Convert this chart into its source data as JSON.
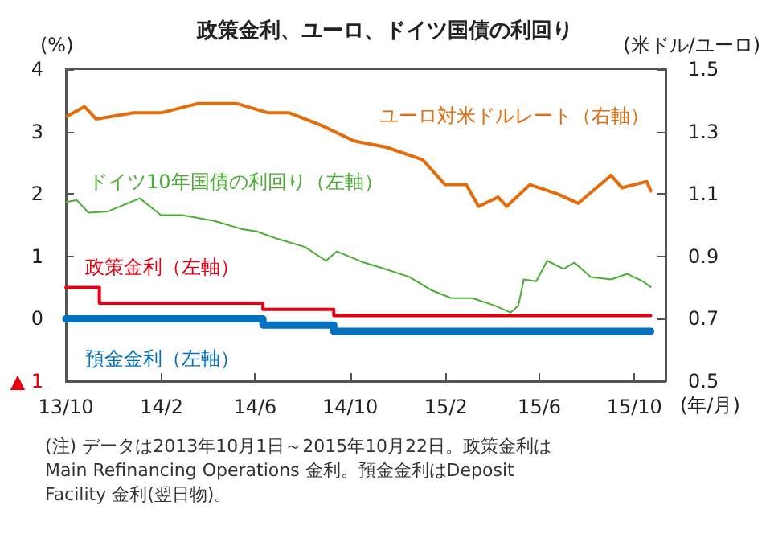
{
  "chart_data": {
    "type": "line",
    "title": "政策金利、ユーロ、ドイツ国債の利回り",
    "ylabel": "(%)",
    "y2label": "(米ドル/ユーロ)",
    "xlabel": "(年/月)",
    "annotations": [
      "(注) データは2013年10月1日～2015年10月22日。政策金利はMain Refinancing Operations 金利。預金金利はDeposit Facility 金利(翌日物)。"
    ],
    "xlim": [
      "2013-10-01",
      "2015-11-10"
    ],
    "xticks": [
      {
        "value": "2013-10-01",
        "label": "13/10"
      },
      {
        "value": "2014-02-01",
        "label": "14/2"
      },
      {
        "value": "2014-06-01",
        "label": "14/6"
      },
      {
        "value": "2014-10-01",
        "label": "14/10"
      },
      {
        "value": "2015-02-01",
        "label": "15/2"
      },
      {
        "value": "2015-06-01",
        "label": "15/6"
      },
      {
        "value": "2015-10-01",
        "label": "15/10"
      }
    ],
    "ylim": [
      -1,
      4
    ],
    "yticks": [
      {
        "value": -1,
        "label": "▲ 1"
      },
      0,
      1,
      2,
      3,
      4
    ],
    "y2lim": [
      0.5,
      1.5
    ],
    "y2ticks": [
      0.5,
      0.7,
      0.9,
      1.1,
      1.3,
      1.5
    ],
    "grid": false,
    "legend": false,
    "marker": "none",
    "series": [
      {
        "name": "ユーロ対米ドルレート（右軸）",
        "color": "#e46c0a",
        "axis": "y2",
        "x": [
          "2013-10-03",
          "2013-10-25",
          "2013-11-09",
          "2013-12-27",
          "2014-01-31",
          "2014-03-20",
          "2014-05-08",
          "2014-06-18",
          "2014-07-15",
          "2014-08-25",
          "2014-10-06",
          "2014-11-16",
          "2015-01-02",
          "2015-01-31",
          "2015-02-27",
          "2015-03-15",
          "2015-04-09",
          "2015-04-20",
          "2015-05-20",
          "2015-06-24",
          "2015-07-21",
          "2015-09-01",
          "2015-09-15",
          "2015-10-17",
          "2015-10-22"
        ],
        "values": [
          1.35,
          1.38,
          1.34,
          1.36,
          1.36,
          1.39,
          1.39,
          1.36,
          1.36,
          1.32,
          1.27,
          1.25,
          1.21,
          1.13,
          1.13,
          1.06,
          1.09,
          1.06,
          1.13,
          1.1,
          1.07,
          1.16,
          1.12,
          1.14,
          1.11
        ]
      },
      {
        "name": "ドイツ10年国債の利回り（左軸）",
        "color": "#4aad34",
        "x": [
          "2013-10-01",
          "2013-10-15",
          "2013-10-30",
          "2013-11-24",
          "2014-01-04",
          "2014-01-31",
          "2014-02-27",
          "2014-04-09",
          "2014-05-14",
          "2014-06-03",
          "2014-06-30",
          "2014-08-04",
          "2014-08-31",
          "2014-09-14",
          "2014-10-19",
          "2014-11-14",
          "2014-12-16",
          "2015-01-13",
          "2015-02-08",
          "2015-03-07",
          "2015-04-05",
          "2015-04-25",
          "2015-05-05",
          "2015-05-12",
          "2015-05-28",
          "2015-06-11",
          "2015-07-02",
          "2015-07-16",
          "2015-08-06",
          "2015-09-01",
          "2015-09-22",
          "2015-10-12",
          "2015-10-22"
        ],
        "values": [
          1.87,
          1.9,
          1.7,
          1.72,
          1.93,
          1.66,
          1.66,
          1.57,
          1.44,
          1.4,
          1.28,
          1.15,
          0.93,
          1.08,
          0.9,
          0.8,
          0.67,
          0.46,
          0.33,
          0.33,
          0.21,
          0.1,
          0.21,
          0.63,
          0.6,
          0.93,
          0.8,
          0.9,
          0.67,
          0.63,
          0.72,
          0.6,
          0.51
        ]
      },
      {
        "name": "政策金利（左軸）",
        "color": "#e60012",
        "type": "step",
        "x": [
          "2013-10-01",
          "2013-11-13",
          "2014-06-11",
          "2014-09-10",
          "2015-10-22"
        ],
        "values": [
          0.5,
          0.25,
          0.15,
          0.05,
          0.05
        ]
      },
      {
        "name": "預金金利（左軸）",
        "color": "#0070c0",
        "type": "step",
        "x": [
          "2013-10-01",
          "2014-06-11",
          "2014-09-10",
          "2015-10-22"
        ],
        "values": [
          0,
          -0.1,
          -0.2,
          -0.2
        ]
      }
    ]
  }
}
